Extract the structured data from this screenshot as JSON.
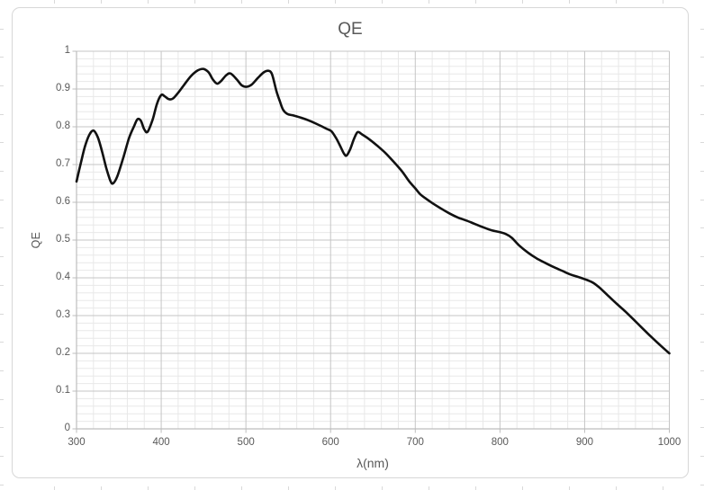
{
  "chart_data": {
    "type": "line",
    "title": "QE",
    "xlabel": "λ(nm)",
    "ylabel": "QE",
    "xlim": [
      300,
      1000
    ],
    "ylim": [
      0,
      1
    ],
    "x_major_unit": 100,
    "x_minor_unit": 20,
    "y_major_unit": 0.1,
    "y_minor_unit": 0.02,
    "x_ticks": [
      "300",
      "400",
      "500",
      "600",
      "700",
      "800",
      "900",
      "1000"
    ],
    "y_ticks": [
      "0",
      "0.1",
      "0.2",
      "0.3",
      "0.4",
      "0.5",
      "0.6",
      "0.7",
      "0.8",
      "0.9",
      "1"
    ],
    "grid": "major and minor gridlines on both axes",
    "legend_position": "none",
    "series": [
      {
        "name": "QE",
        "points": [
          [
            300,
            0.655
          ],
          [
            305,
            0.703
          ],
          [
            310,
            0.748
          ],
          [
            315,
            0.778
          ],
          [
            320,
            0.79
          ],
          [
            325,
            0.773
          ],
          [
            330,
            0.736
          ],
          [
            335,
            0.692
          ],
          [
            340,
            0.657
          ],
          [
            343,
            0.65
          ],
          [
            348,
            0.668
          ],
          [
            355,
            0.716
          ],
          [
            362,
            0.77
          ],
          [
            368,
            0.802
          ],
          [
            372,
            0.82
          ],
          [
            376,
            0.816
          ],
          [
            380,
            0.793
          ],
          [
            384,
            0.787
          ],
          [
            390,
            0.82
          ],
          [
            395,
            0.861
          ],
          [
            400,
            0.884
          ],
          [
            404,
            0.881
          ],
          [
            409,
            0.873
          ],
          [
            414,
            0.875
          ],
          [
            420,
            0.89
          ],
          [
            427,
            0.911
          ],
          [
            435,
            0.934
          ],
          [
            443,
            0.949
          ],
          [
            450,
            0.953
          ],
          [
            456,
            0.944
          ],
          [
            461,
            0.925
          ],
          [
            466,
            0.914
          ],
          [
            471,
            0.922
          ],
          [
            477,
            0.937
          ],
          [
            482,
            0.941
          ],
          [
            489,
            0.926
          ],
          [
            495,
            0.91
          ],
          [
            501,
            0.906
          ],
          [
            507,
            0.912
          ],
          [
            514,
            0.929
          ],
          [
            521,
            0.944
          ],
          [
            527,
            0.948
          ],
          [
            531,
            0.938
          ],
          [
            536,
            0.895
          ],
          [
            540,
            0.868
          ],
          [
            544,
            0.845
          ],
          [
            549,
            0.834
          ],
          [
            556,
            0.83
          ],
          [
            565,
            0.824
          ],
          [
            575,
            0.816
          ],
          [
            585,
            0.806
          ],
          [
            595,
            0.795
          ],
          [
            601,
            0.788
          ],
          [
            607,
            0.768
          ],
          [
            612,
            0.746
          ],
          [
            616,
            0.728
          ],
          [
            619,
            0.724
          ],
          [
            623,
            0.74
          ],
          [
            628,
            0.77
          ],
          [
            632,
            0.786
          ],
          [
            637,
            0.78
          ],
          [
            645,
            0.768
          ],
          [
            655,
            0.75
          ],
          [
            665,
            0.73
          ],
          [
            675,
            0.706
          ],
          [
            685,
            0.68
          ],
          [
            693,
            0.655
          ],
          [
            700,
            0.637
          ],
          [
            706,
            0.621
          ],
          [
            713,
            0.609
          ],
          [
            720,
            0.598
          ],
          [
            730,
            0.584
          ],
          [
            740,
            0.571
          ],
          [
            750,
            0.56
          ],
          [
            760,
            0.552
          ],
          [
            770,
            0.543
          ],
          [
            780,
            0.534
          ],
          [
            790,
            0.526
          ],
          [
            800,
            0.521
          ],
          [
            807,
            0.516
          ],
          [
            814,
            0.506
          ],
          [
            823,
            0.485
          ],
          [
            833,
            0.467
          ],
          [
            843,
            0.452
          ],
          [
            853,
            0.44
          ],
          [
            863,
            0.429
          ],
          [
            873,
            0.419
          ],
          [
            883,
            0.409
          ],
          [
            893,
            0.402
          ],
          [
            903,
            0.394
          ],
          [
            910,
            0.387
          ],
          [
            918,
            0.373
          ],
          [
            928,
            0.352
          ],
          [
            938,
            0.331
          ],
          [
            948,
            0.311
          ],
          [
            958,
            0.289
          ],
          [
            968,
            0.267
          ],
          [
            978,
            0.245
          ],
          [
            989,
            0.222
          ],
          [
            1000,
            0.2
          ]
        ]
      }
    ]
  },
  "colors": {
    "background": "#ffffff",
    "frame_border": "#d7d7d7",
    "major_grid": "#c5c5c5",
    "minor_grid": "#e8e8e8",
    "axis": "#bdbdbd",
    "label_text": "#595959",
    "curve": "#111111",
    "edge_stub": "#d9d9d9"
  }
}
